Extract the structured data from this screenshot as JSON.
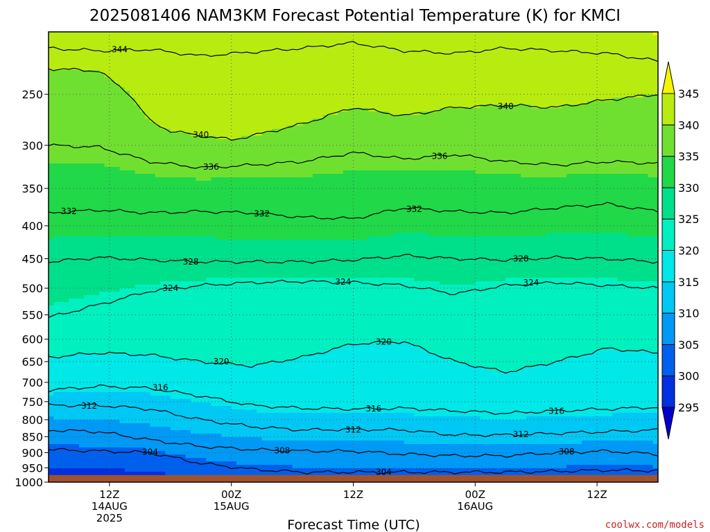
{
  "chart_data": {
    "type": "heatmap",
    "title": "2025081406 NAM3KM Forecast Potential Temperature (K) for KMCI",
    "xlabel": "Forecast Time (UTC)",
    "ylabel": "",
    "credit": "coolwx.com/models",
    "y_ticks": [
      250,
      300,
      350,
      400,
      450,
      500,
      550,
      600,
      650,
      700,
      750,
      800,
      850,
      900,
      950,
      1000
    ],
    "y_tick_labels": [
      "250",
      "300",
      "350",
      "400",
      "450",
      "500",
      "550",
      "600",
      "650",
      "700",
      "750",
      "800",
      "850",
      "900",
      "950",
      "1000"
    ],
    "x_ticks": [
      {
        "hour": 6,
        "lines": [
          "12Z",
          "14AUG",
          "2025"
        ]
      },
      {
        "hour": 18,
        "lines": [
          "00Z",
          "15AUG"
        ]
      },
      {
        "hour": 30,
        "lines": [
          "12Z"
        ]
      },
      {
        "hour": 42,
        "lines": [
          "00Z",
          "16AUG"
        ]
      },
      {
        "hour": 54,
        "lines": [
          "12Z"
        ]
      }
    ],
    "xlim": [
      0,
      60
    ],
    "ylim": [
      1000,
      200
    ],
    "grid": true,
    "colorbar": {
      "levels": [
        295,
        300,
        305,
        310,
        315,
        320,
        325,
        330,
        335,
        340,
        345
      ],
      "colors": [
        "#0000cd",
        "#0030e0",
        "#0060ee",
        "#0099f5",
        "#00c8f5",
        "#00e8e8",
        "#00f0c0",
        "#00e08a",
        "#20d848",
        "#70e030",
        "#b8ec10",
        "#f5f500"
      ],
      "extend": "both"
    },
    "contour_levels": [
      304,
      308,
      312,
      316,
      320,
      324,
      328,
      332,
      336,
      340,
      344
    ],
    "contours": [
      {
        "level": 344,
        "label": "344",
        "x": [
          0,
          5,
          10,
          15,
          20,
          25,
          30,
          35,
          40,
          45,
          50,
          55,
          60
        ],
        "p": [
          212,
          214,
          213,
          218,
          215,
          212,
          208,
          214,
          216,
          212,
          214,
          216,
          222
        ]
      },
      {
        "level": 340,
        "label": "340",
        "x": [
          0,
          5,
          8,
          10,
          12,
          15,
          18,
          20,
          25,
          30,
          35,
          40,
          45,
          50,
          55,
          60
        ],
        "p": [
          228,
          230,
          250,
          275,
          285,
          290,
          294,
          290,
          278,
          262,
          270,
          262,
          260,
          262,
          255,
          250
        ]
      },
      {
        "level": 336,
        "label": "336",
        "x": [
          0,
          5,
          10,
          15,
          20,
          25,
          30,
          35,
          40,
          45,
          50,
          55,
          60
        ],
        "p": [
          300,
          302,
          318,
          325,
          322,
          318,
          308,
          315,
          310,
          318,
          322,
          318,
          320
        ]
      },
      {
        "level": 332,
        "label": "332",
        "x": [
          0,
          5,
          10,
          15,
          20,
          25,
          30,
          35,
          40,
          45,
          50,
          55,
          60
        ],
        "p": [
          382,
          378,
          382,
          380,
          382,
          388,
          390,
          375,
          380,
          382,
          375,
          370,
          380
        ]
      },
      {
        "level": 328,
        "label": "328",
        "x": [
          0,
          5,
          10,
          15,
          20,
          25,
          30,
          35,
          40,
          45,
          50,
          55,
          60
        ],
        "p": [
          455,
          448,
          452,
          455,
          455,
          455,
          452,
          445,
          450,
          452,
          448,
          450,
          455
        ]
      },
      {
        "level": 324,
        "label": "324",
        "x": [
          0,
          5,
          10,
          15,
          20,
          25,
          30,
          35,
          40,
          45,
          50,
          55,
          60
        ],
        "p": [
          555,
          530,
          505,
          495,
          490,
          488,
          490,
          495,
          510,
          495,
          490,
          495,
          500
        ]
      },
      {
        "level": 320,
        "label": "320",
        "x": [
          0,
          5,
          10,
          15,
          20,
          25,
          30,
          35,
          40,
          45,
          50,
          55,
          60
        ],
        "p": [
          640,
          630,
          635,
          650,
          660,
          640,
          610,
          605,
          650,
          675,
          650,
          620,
          630
        ]
      },
      {
        "level": 316,
        "label": "316",
        "x": [
          0,
          5,
          10,
          15,
          20,
          25,
          30,
          35,
          40,
          45,
          50,
          55,
          60
        ],
        "p": [
          720,
          710,
          715,
          735,
          760,
          768,
          770,
          768,
          775,
          782,
          775,
          770,
          765
        ]
      },
      {
        "level": 312,
        "label": "312",
        "x": [
          0,
          5,
          10,
          15,
          20,
          25,
          30,
          35,
          40,
          45,
          50,
          55,
          60
        ],
        "p": [
          760,
          760,
          770,
          800,
          820,
          830,
          828,
          830,
          845,
          845,
          840,
          835,
          830
        ]
      },
      {
        "level": 308,
        "label": "308",
        "x": [
          0,
          5,
          10,
          15,
          20,
          25,
          30,
          35,
          40,
          45,
          50,
          55,
          60
        ],
        "p": [
          830,
          835,
          860,
          880,
          890,
          895,
          895,
          905,
          910,
          910,
          900,
          895,
          905
        ]
      },
      {
        "level": 304,
        "label": "304",
        "x": [
          0,
          5,
          10,
          15,
          20,
          25,
          30,
          35,
          40,
          45,
          50,
          55,
          60
        ],
        "p": [
          890,
          895,
          900,
          935,
          955,
          965,
          965,
          965,
          965,
          965,
          962,
          958,
          960
        ]
      }
    ],
    "contour_labels": [
      {
        "level": 344,
        "text": "344",
        "hour": 7,
        "p": 213
      },
      {
        "level": 340,
        "text": "340",
        "hour": 15,
        "p": 289
      },
      {
        "level": 340,
        "text": "340",
        "hour": 45,
        "p": 261
      },
      {
        "level": 336,
        "text": "336",
        "hour": 16,
        "p": 324
      },
      {
        "level": 336,
        "text": "336",
        "hour": 38.5,
        "p": 312
      },
      {
        "level": 332,
        "text": "332",
        "hour": 2,
        "p": 380
      },
      {
        "level": 332,
        "text": "332",
        "hour": 21,
        "p": 383
      },
      {
        "level": 332,
        "text": "332",
        "hour": 36,
        "p": 377
      },
      {
        "level": 328,
        "text": "328",
        "hour": 14,
        "p": 455
      },
      {
        "level": 328,
        "text": "328",
        "hour": 46.5,
        "p": 450
      },
      {
        "level": 324,
        "text": "324",
        "hour": 12,
        "p": 500
      },
      {
        "level": 324,
        "text": "324",
        "hour": 29,
        "p": 489
      },
      {
        "level": 324,
        "text": "324",
        "hour": 47.5,
        "p": 490
      },
      {
        "level": 320,
        "text": "320",
        "hour": 17,
        "p": 650
      },
      {
        "level": 320,
        "text": "320",
        "hour": 33,
        "p": 606
      },
      {
        "level": 316,
        "text": "316",
        "hour": 11,
        "p": 713
      },
      {
        "level": 316,
        "text": "316",
        "hour": 32,
        "p": 769
      },
      {
        "level": 316,
        "text": "316",
        "hour": 50,
        "p": 776
      },
      {
        "level": 312,
        "text": "312",
        "hour": 4,
        "p": 762
      },
      {
        "level": 312,
        "text": "312",
        "hour": 30,
        "p": 829
      },
      {
        "level": 312,
        "text": "312",
        "hour": 46.5,
        "p": 843
      },
      {
        "level": 308,
        "text": "308",
        "hour": 23,
        "p": 893
      },
      {
        "level": 308,
        "text": "308",
        "hour": 51,
        "p": 897
      },
      {
        "level": 304,
        "text": "304",
        "hour": 10,
        "p": 898
      },
      {
        "level": 304,
        "text": "304",
        "hour": 33,
        "p": 965
      }
    ],
    "ground_level_p": 975,
    "ground_color": "#a0522d"
  }
}
